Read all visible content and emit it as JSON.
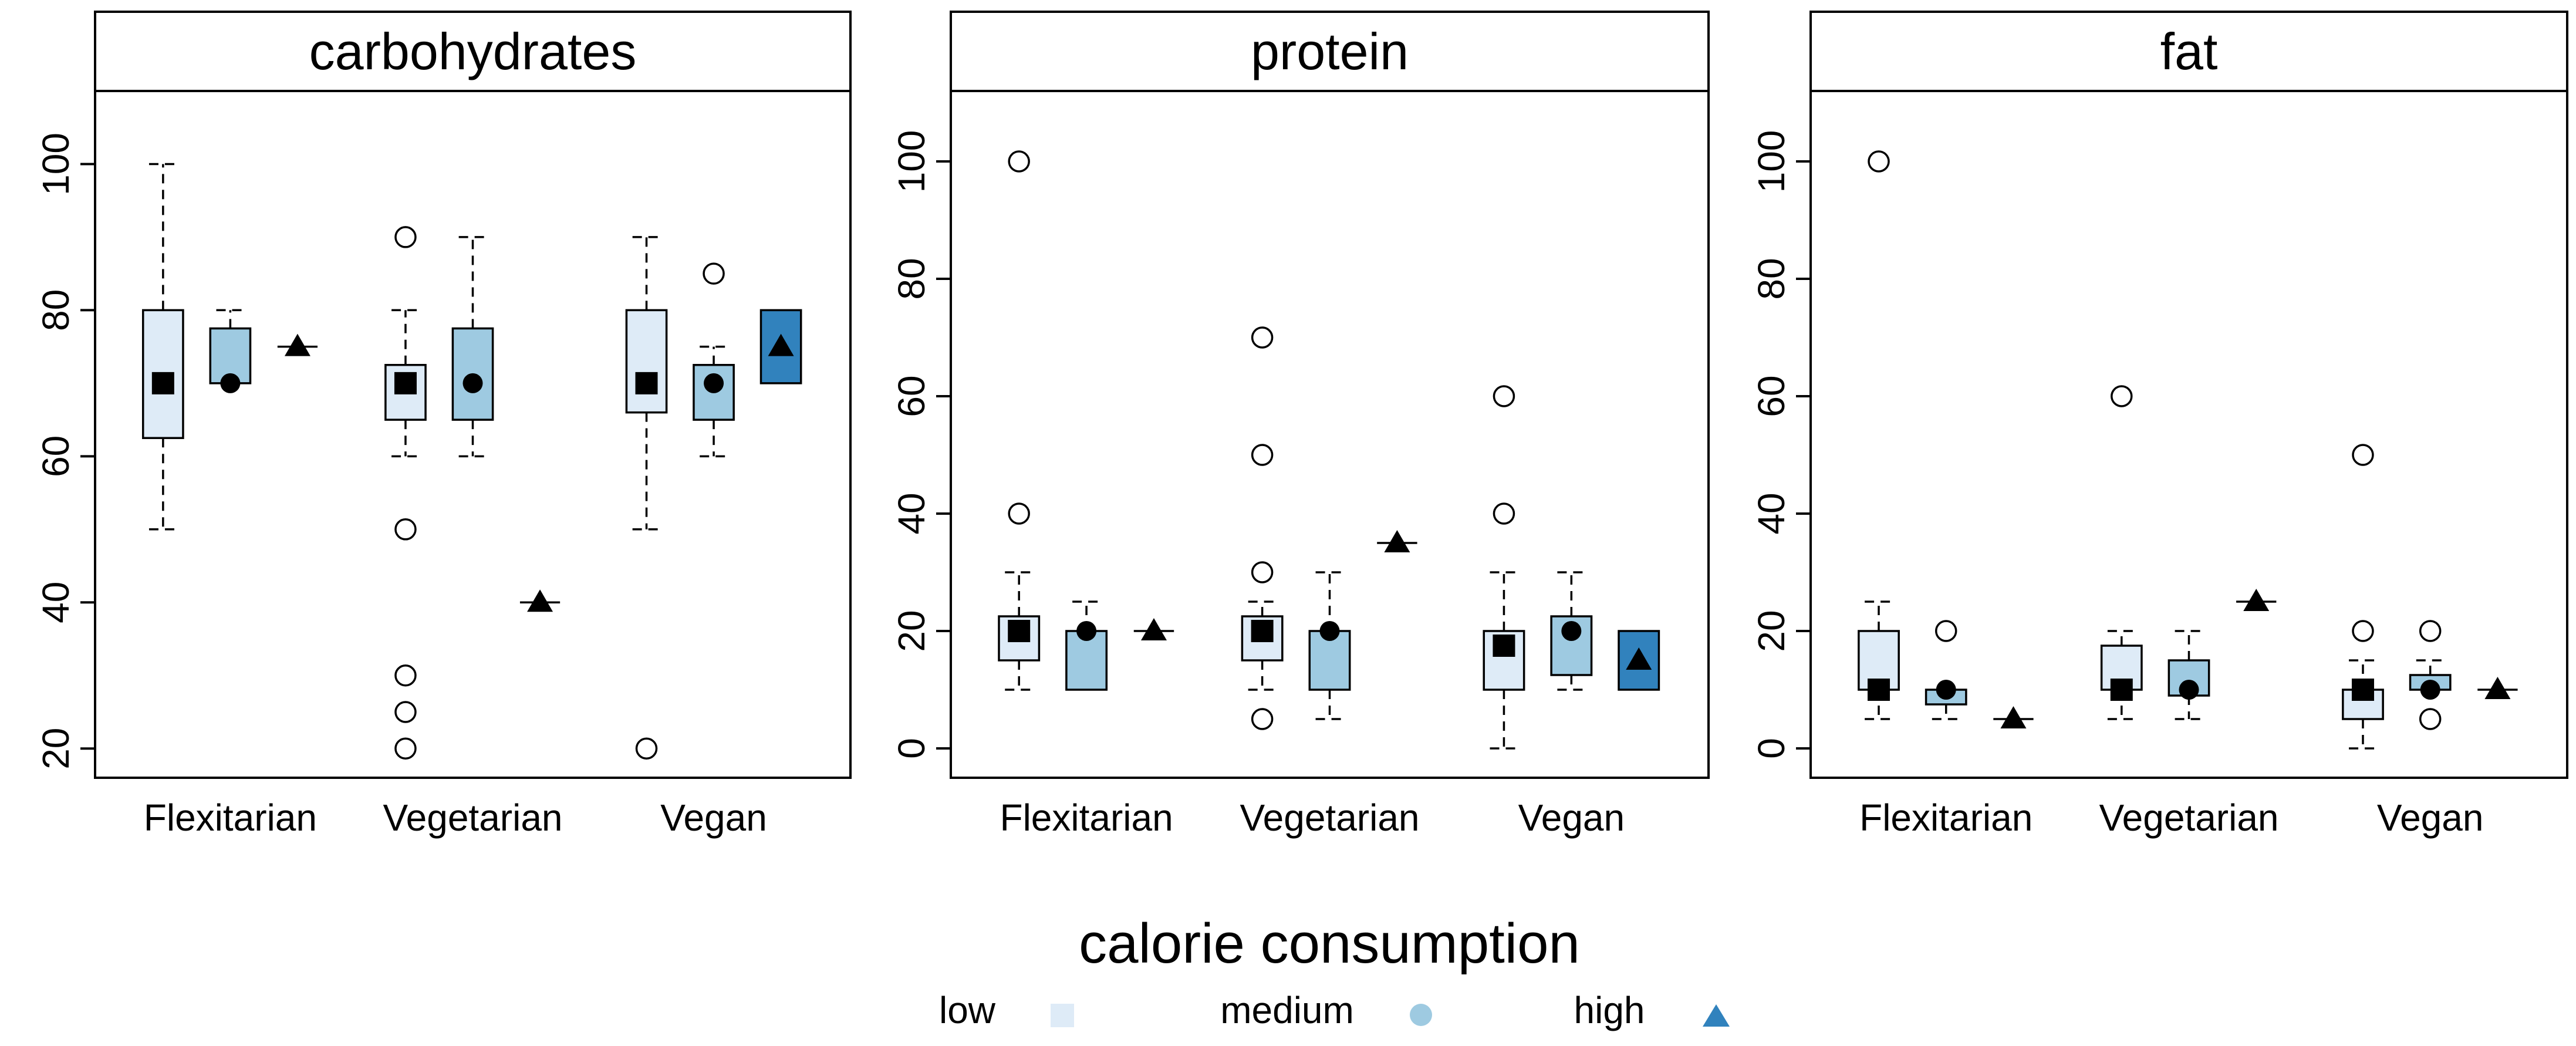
{
  "chart_data": [
    {
      "type": "box",
      "title": "carbohydrates",
      "categories": [
        "Flexitarian",
        "Vegetarian",
        "Vegan"
      ],
      "ylim": [
        16,
        110
      ],
      "yticks": [
        20,
        40,
        60,
        80,
        100
      ],
      "groups": [
        {
          "category": "Flexitarian",
          "boxes": [
            {
              "level": "low",
              "whisk_lo": 50,
              "q1": 62.5,
              "median": 70,
              "q3": 80,
              "whisk_hi": 100,
              "outliers": []
            },
            {
              "level": "medium",
              "whisk_lo": 70,
              "q1": 70,
              "median": 70,
              "q3": 77.5,
              "whisk_hi": 80,
              "outliers": []
            },
            {
              "level": "high",
              "whisk_lo": 75,
              "q1": 75,
              "median": 75,
              "q3": 75,
              "whisk_hi": 75,
              "outliers": []
            }
          ]
        },
        {
          "category": "Vegetarian",
          "boxes": [
            {
              "level": "low",
              "whisk_lo": 60,
              "q1": 65,
              "median": 70,
              "q3": 72.5,
              "whisk_hi": 80,
              "outliers": [
                90,
                50,
                30,
                25,
                20
              ]
            },
            {
              "level": "medium",
              "whisk_lo": 60,
              "q1": 65,
              "median": 70,
              "q3": 77.5,
              "whisk_hi": 90,
              "outliers": []
            },
            {
              "level": "high",
              "whisk_lo": 40,
              "q1": 40,
              "median": 40,
              "q3": 40,
              "whisk_hi": 40,
              "outliers": []
            }
          ]
        },
        {
          "category": "Vegan",
          "boxes": [
            {
              "level": "low",
              "whisk_lo": 50,
              "q1": 66,
              "median": 70,
              "q3": 80,
              "whisk_hi": 90,
              "outliers": [
                20
              ]
            },
            {
              "level": "medium",
              "whisk_lo": 60,
              "q1": 65,
              "median": 70,
              "q3": 72.5,
              "whisk_hi": 75,
              "outliers": [
                85
              ]
            },
            {
              "level": "high",
              "whisk_lo": 70,
              "q1": 70,
              "median": 75,
              "q3": 80,
              "whisk_hi": 80,
              "outliers": []
            }
          ]
        }
      ]
    },
    {
      "type": "box",
      "title": "protein",
      "categories": [
        "Flexitarian",
        "Vegetarian",
        "Vegan"
      ],
      "ylim": [
        -5,
        112
      ],
      "yticks": [
        0,
        20,
        40,
        60,
        80,
        100
      ],
      "groups": [
        {
          "category": "Flexitarian",
          "boxes": [
            {
              "level": "low",
              "whisk_lo": 10,
              "q1": 15,
              "median": 20,
              "q3": 22.5,
              "whisk_hi": 30,
              "outliers": [
                100,
                40
              ]
            },
            {
              "level": "medium",
              "whisk_lo": 10,
              "q1": 10,
              "median": 20,
              "q3": 20,
              "whisk_hi": 25,
              "outliers": []
            },
            {
              "level": "high",
              "whisk_lo": 20,
              "q1": 20,
              "median": 20,
              "q3": 20,
              "whisk_hi": 20,
              "outliers": []
            }
          ]
        },
        {
          "category": "Vegetarian",
          "boxes": [
            {
              "level": "low",
              "whisk_lo": 10,
              "q1": 15,
              "median": 20,
              "q3": 22.5,
              "whisk_hi": 25,
              "outliers": [
                70,
                50,
                30,
                5
              ]
            },
            {
              "level": "medium",
              "whisk_lo": 5,
              "q1": 10,
              "median": 20,
              "q3": 20,
              "whisk_hi": 30,
              "outliers": []
            },
            {
              "level": "high",
              "whisk_lo": 35,
              "q1": 35,
              "median": 35,
              "q3": 35,
              "whisk_hi": 35,
              "outliers": []
            }
          ]
        },
        {
          "category": "Vegan",
          "boxes": [
            {
              "level": "low",
              "whisk_lo": 0,
              "q1": 10,
              "median": 17.5,
              "q3": 20,
              "whisk_hi": 30,
              "outliers": [
                60,
                40
              ]
            },
            {
              "level": "medium",
              "whisk_lo": 10,
              "q1": 12.5,
              "median": 20,
              "q3": 22.5,
              "whisk_hi": 30,
              "outliers": []
            },
            {
              "level": "high",
              "whisk_lo": 10,
              "q1": 10,
              "median": 15,
              "q3": 20,
              "whisk_hi": 20,
              "outliers": []
            }
          ]
        }
      ]
    },
    {
      "type": "box",
      "title": "fat",
      "categories": [
        "Flexitarian",
        "Vegetarian",
        "Vegan"
      ],
      "ylim": [
        -5,
        112
      ],
      "yticks": [
        0,
        20,
        40,
        60,
        80,
        100
      ],
      "groups": [
        {
          "category": "Flexitarian",
          "boxes": [
            {
              "level": "low",
              "whisk_lo": 5,
              "q1": 10,
              "median": 10,
              "q3": 20,
              "whisk_hi": 25,
              "outliers": [
                100
              ]
            },
            {
              "level": "medium",
              "whisk_lo": 5,
              "q1": 7.5,
              "median": 10,
              "q3": 10,
              "whisk_hi": 10,
              "outliers": [
                20
              ]
            },
            {
              "level": "high",
              "whisk_lo": 5,
              "q1": 5,
              "median": 5,
              "q3": 5,
              "whisk_hi": 5,
              "outliers": []
            }
          ]
        },
        {
          "category": "Vegetarian",
          "boxes": [
            {
              "level": "low",
              "whisk_lo": 5,
              "q1": 10,
              "median": 10,
              "q3": 17.5,
              "whisk_hi": 20,
              "outliers": [
                60
              ]
            },
            {
              "level": "medium",
              "whisk_lo": 5,
              "q1": 9,
              "median": 10,
              "q3": 15,
              "whisk_hi": 20,
              "outliers": []
            },
            {
              "level": "high",
              "whisk_lo": 25,
              "q1": 25,
              "median": 25,
              "q3": 25,
              "whisk_hi": 25,
              "outliers": []
            }
          ]
        },
        {
          "category": "Vegan",
          "boxes": [
            {
              "level": "low",
              "whisk_lo": 0,
              "q1": 5,
              "median": 10,
              "q3": 10,
              "whisk_hi": 15,
              "outliers": [
                50,
                20
              ]
            },
            {
              "level": "medium",
              "whisk_lo": 10,
              "q1": 10,
              "median": 10,
              "q3": 12.5,
              "whisk_hi": 15,
              "outliers": [
                20,
                5
              ]
            },
            {
              "level": "high",
              "whisk_lo": 10,
              "q1": 10,
              "median": 10,
              "q3": 10,
              "whisk_hi": 10,
              "outliers": []
            }
          ]
        }
      ]
    }
  ],
  "legend": {
    "title": "calorie consumption",
    "items": [
      {
        "label": "low",
        "symbol": "square",
        "color": "#deebf7"
      },
      {
        "label": "medium",
        "symbol": "circle",
        "color": "#9ecae1"
      },
      {
        "label": "high",
        "symbol": "triangle",
        "color": "#3182bd"
      }
    ]
  },
  "colors": {
    "low": "#deebf7",
    "medium": "#9ecae1",
    "high": "#3182bd",
    "marker": "#000000",
    "frame": "#000000",
    "header": "#ffffff"
  },
  "markers": {
    "low": "square",
    "medium": "circle",
    "high": "triangle"
  }
}
